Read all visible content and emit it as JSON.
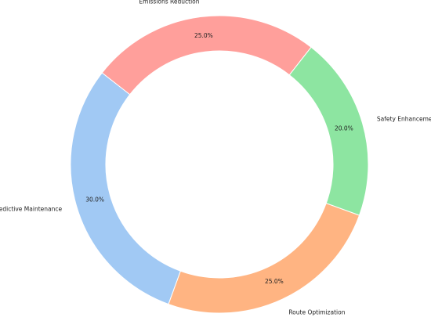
{
  "chart_data": {
    "type": "donut",
    "categories": [
      "Predictive Maintenance",
      "Route Optimization",
      "Safety Enhancement",
      "Emissions Reduction"
    ],
    "values": [
      30,
      25,
      20,
      25
    ],
    "value_labels": [
      "30.0%",
      "25.0%",
      "20.0%",
      "25.0%"
    ],
    "colors": [
      "#a1c9f4",
      "#ffb482",
      "#8de5a1",
      "#ff9f9b"
    ]
  }
}
